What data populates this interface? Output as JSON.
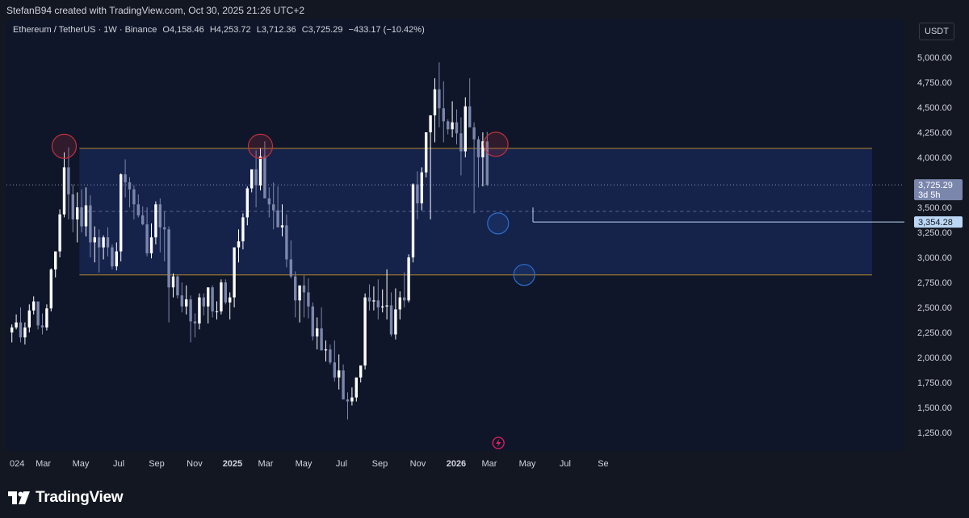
{
  "header": {
    "attribution": "StefanB94 created with TradingView.com, Oct 30, 2025 21:26 UTC+2"
  },
  "legend": {
    "symbol": "Ethereum / TetherUS · 1W · Binance",
    "open_label": "O",
    "open": "4,158.46",
    "high_label": "H",
    "high": "4,253.72",
    "low_label": "L",
    "low": "3,712.36",
    "close_label": "C",
    "close": "3,725.29",
    "change": "−433.17 (−10.42%)"
  },
  "currency_button": {
    "label": "USDT"
  },
  "footer": {
    "brand": "TradingView"
  },
  "colors": {
    "background": "#0f1629",
    "up_candle": "#ffffff",
    "down_candle": "#7b86ad",
    "zone_fill": "#16244e",
    "level_line": "#b8862c",
    "red_circle": "#c0323c",
    "blue_circle": "#2e6fcf",
    "axis_text": "#d1d4dc",
    "price_label_bg": "#bcd7f5"
  },
  "chart_data": {
    "type": "candlestick",
    "symbol": "Ethereum / TetherUS",
    "interval": "1W",
    "exchange": "Binance",
    "y_axis": {
      "ticks": [
        "5,000.00",
        "4,750.00",
        "4,500.00",
        "4,250.00",
        "4,000.00",
        "3,750.00",
        "3,500.00",
        "3,250.00",
        "3,000.00",
        "2,750.00",
        "2,500.00",
        "2,250.00",
        "2,000.00",
        "1,750.00",
        "1,500.00",
        "1,250.00"
      ],
      "tick_values": [
        5000,
        4750,
        4500,
        4250,
        4000,
        3750,
        3500,
        3250,
        3000,
        2750,
        2500,
        2250,
        2000,
        1750,
        1500,
        1250
      ],
      "ylim": [
        1100,
        5100
      ]
    },
    "x_axis": {
      "ticks": [
        "024",
        "Mar",
        "May",
        "Jul",
        "Sep",
        "Nov",
        "2025",
        "Mar",
        "May",
        "Jul",
        "Sep",
        "Nov",
        "2026",
        "Mar",
        "May",
        "Jul",
        "Se"
      ],
      "tick_positions": [
        0,
        7.7,
        16.3,
        25,
        33.7,
        42.4,
        51.1,
        58.7,
        67.4,
        76.1,
        84.9,
        93.6,
        102.4,
        110,
        118.7,
        127.4,
        136.1
      ],
      "bold_ticks": [
        "2025",
        "2026"
      ]
    },
    "candles_ohlc": [
      [
        2250,
        2330,
        2150,
        2300
      ],
      [
        2300,
        2430,
        2280,
        2350
      ],
      [
        2350,
        2500,
        2150,
        2200
      ],
      [
        2200,
        2350,
        2130,
        2300
      ],
      [
        2300,
        2530,
        2250,
        2470
      ],
      [
        2470,
        2610,
        2430,
        2560
      ],
      [
        2560,
        2410,
        2280,
        2320
      ],
      [
        2320,
        2440,
        2230,
        2300
      ],
      [
        2300,
        2530,
        2270,
        2490
      ],
      [
        2490,
        2890,
        2460,
        2880
      ],
      [
        2880,
        3050,
        2800,
        3060
      ],
      [
        3060,
        3480,
        3000,
        3430
      ],
      [
        3430,
        4050,
        3400,
        3900
      ],
      [
        3900,
        4100,
        3380,
        3630
      ],
      [
        3630,
        3730,
        3250,
        3380
      ],
      [
        3380,
        3650,
        3150,
        3500
      ],
      [
        3500,
        3680,
        3250,
        3310
      ],
      [
        3310,
        3700,
        3210,
        3520
      ],
      [
        3520,
        3620,
        3000,
        3150
      ],
      [
        3150,
        3310,
        2950,
        3200
      ],
      [
        3200,
        3280,
        2850,
        3100
      ],
      [
        3100,
        3220,
        2980,
        3200
      ],
      [
        3200,
        3300,
        3010,
        3100
      ],
      [
        3100,
        3130,
        2880,
        2910
      ],
      [
        2910,
        3150,
        2870,
        3060
      ],
      [
        3060,
        3840,
        2960,
        3830
      ],
      [
        3830,
        3980,
        3600,
        3750
      ],
      [
        3750,
        3800,
        3500,
        3680
      ],
      [
        3680,
        3720,
        3380,
        3530
      ],
      [
        3530,
        3630,
        3400,
        3420
      ],
      [
        3420,
        3510,
        3320,
        3330
      ],
      [
        3330,
        3500,
        3010,
        3040
      ],
      [
        3040,
        3340,
        2990,
        3200
      ],
      [
        3200,
        3560,
        3130,
        3530
      ],
      [
        3530,
        3590,
        3050,
        3300
      ],
      [
        3300,
        3460,
        2960,
        3280
      ],
      [
        3280,
        3310,
        2350,
        2700
      ],
      [
        2700,
        2840,
        2600,
        2810
      ],
      [
        2810,
        2830,
        2590,
        2620
      ],
      [
        2620,
        2750,
        2450,
        2510
      ],
      [
        2510,
        2720,
        2430,
        2580
      ],
      [
        2580,
        2620,
        2150,
        2360
      ],
      [
        2360,
        2440,
        2200,
        2340
      ],
      [
        2340,
        2640,
        2280,
        2600
      ],
      [
        2600,
        2640,
        2420,
        2510
      ],
      [
        2510,
        2680,
        2340,
        2700
      ],
      [
        2700,
        2720,
        2400,
        2460
      ],
      [
        2460,
        2560,
        2380,
        2460
      ],
      [
        2460,
        2780,
        2430,
        2750
      ],
      [
        2750,
        2780,
        2530,
        2550
      ],
      [
        2550,
        2650,
        2380,
        2600
      ],
      [
        2600,
        3100,
        2500,
        3100
      ],
      [
        3100,
        3280,
        2950,
        3160
      ],
      [
        3160,
        3440,
        3080,
        3400
      ],
      [
        3400,
        3710,
        3320,
        3690
      ],
      [
        3690,
        3840,
        3650,
        3880
      ],
      [
        3880,
        4070,
        3500,
        3720
      ],
      [
        3720,
        4090,
        3670,
        4010
      ],
      [
        4010,
        4160,
        3920,
        3590
      ],
      [
        3590,
        3700,
        3400,
        3530
      ],
      [
        3530,
        3750,
        3280,
        3470
      ],
      [
        3470,
        3710,
        3350,
        3300
      ],
      [
        3300,
        3530,
        3210,
        3320
      ],
      [
        3320,
        3430,
        2900,
        2980
      ],
      [
        2980,
        3170,
        2790,
        2810
      ],
      [
        2810,
        2860,
        2400,
        2570
      ],
      [
        2570,
        2670,
        2350,
        2720
      ],
      [
        2720,
        2820,
        2400,
        2650
      ],
      [
        2650,
        2790,
        2390,
        2510
      ],
      [
        2510,
        2550,
        2170,
        2210
      ],
      [
        2210,
        2400,
        2080,
        2290
      ],
      [
        2290,
        2500,
        2120,
        2070
      ],
      [
        2070,
        2170,
        1960,
        2080
      ],
      [
        2080,
        2130,
        1930,
        1950
      ],
      [
        1950,
        2170,
        1760,
        1800
      ],
      [
        1800,
        2030,
        1680,
        1870
      ],
      [
        1870,
        1930,
        1750,
        1580
      ],
      [
        1580,
        1650,
        1380,
        1560
      ],
      [
        1560,
        1700,
        1520,
        1600
      ],
      [
        1600,
        1700,
        1560,
        1800
      ],
      [
        1800,
        1850,
        1750,
        1920
      ],
      [
        1920,
        2640,
        1880,
        2600
      ],
      [
        2600,
        2730,
        2470,
        2560
      ],
      [
        2560,
        2710,
        2470,
        2570
      ],
      [
        2570,
        2780,
        2380,
        2500
      ],
      [
        2500,
        2680,
        2450,
        2510
      ],
      [
        2510,
        2880,
        2380,
        2520
      ],
      [
        2520,
        2650,
        2210,
        2230
      ],
      [
        2230,
        2690,
        2180,
        2480
      ],
      [
        2480,
        2660,
        2380,
        2600
      ],
      [
        2600,
        2850,
        2500,
        2570
      ],
      [
        2570,
        3030,
        2550,
        3000
      ],
      [
        3000,
        3740,
        2950,
        3730
      ],
      [
        3730,
        3860,
        3380,
        3540
      ],
      [
        3540,
        3900,
        3470,
        3850
      ],
      [
        3850,
        4230,
        3800,
        4250
      ],
      [
        4250,
        4350,
        3380,
        4420
      ],
      [
        4420,
        4790,
        4150,
        4680
      ],
      [
        4680,
        4950,
        4300,
        4490
      ],
      [
        4490,
        4760,
        4150,
        4360
      ],
      [
        4360,
        4380,
        4230,
        4280
      ],
      [
        4280,
        4560,
        4200,
        4350
      ],
      [
        4350,
        4480,
        4130,
        4240
      ],
      [
        4240,
        4400,
        3820,
        4060
      ],
      [
        4060,
        4600,
        4000,
        4510
      ],
      [
        4510,
        4790,
        4400,
        4300
      ],
      [
        4300,
        4350,
        3440,
        4180
      ],
      [
        4180,
        4210,
        3700,
        4000
      ],
      [
        4000,
        4250,
        3710,
        4160
      ],
      [
        4158.46,
        4253.72,
        3712.36,
        3725.29
      ]
    ],
    "bar_spacing_px": 5.4,
    "annotations": {
      "zone": {
        "upper": 4090,
        "lower": 2825
      },
      "dashed_midline": 3460,
      "current_price": {
        "value": 3725.29,
        "label": "3,725.29",
        "countdown": "3d 5h"
      },
      "horizontal_level": {
        "value": 3354.28,
        "label": "3,354.28"
      },
      "red_circles": [
        {
          "bar": 12,
          "price": 4110
        },
        {
          "bar": 57,
          "price": 4110
        },
        {
          "bar": 111,
          "price": 4130
        }
      ],
      "blue_circles": [
        {
          "bar": 111.5,
          "price": 3340
        },
        {
          "bar": 117.5,
          "price": 2825
        }
      ]
    }
  }
}
